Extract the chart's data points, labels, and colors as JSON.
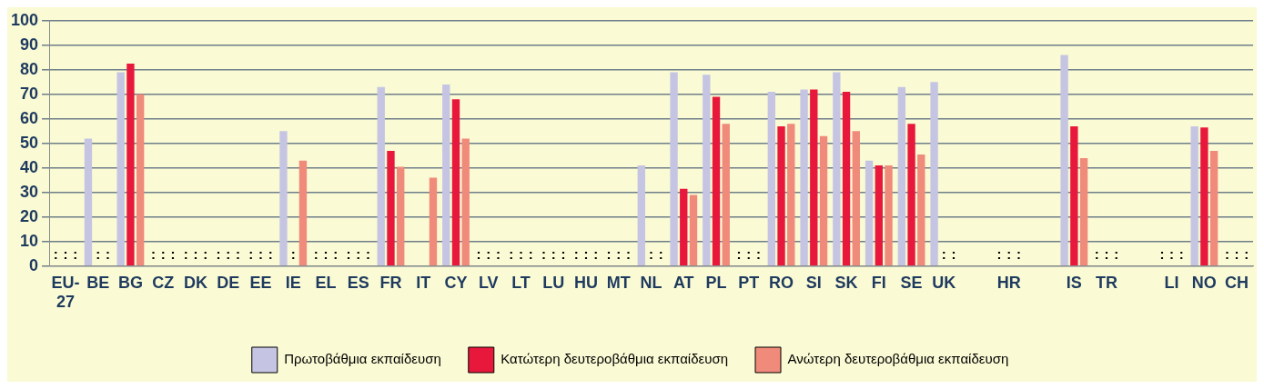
{
  "chart_data": {
    "type": "bar",
    "categories": [
      "EU-27",
      "BE",
      "BG",
      "CZ",
      "DK",
      "DE",
      "EE",
      "IE",
      "EL",
      "ES",
      "FR",
      "IT",
      "CY",
      "LV",
      "LT",
      "LU",
      "HU",
      "MT",
      "NL",
      "AT",
      "PL",
      "PT",
      "RO",
      "SI",
      "SK",
      "FI",
      "SE",
      "UK",
      null,
      "HR",
      null,
      "IS",
      "TR",
      null,
      "LI",
      "NO",
      "CH"
    ],
    "series": [
      {
        "name": "Πρωτοβάθμια εκπαίδευση",
        "color": "#c5c5e3",
        "values": [
          null,
          52,
          79,
          null,
          null,
          null,
          null,
          55,
          null,
          null,
          73,
          null,
          74,
          null,
          null,
          null,
          null,
          null,
          41,
          79,
          78,
          null,
          71,
          72,
          79,
          43,
          73,
          75,
          null,
          null,
          null,
          86,
          null,
          null,
          null,
          57,
          null
        ],
        "value_labels": [
          ":",
          null,
          null,
          ":",
          ":",
          ":",
          ":",
          null,
          ":",
          ":",
          null,
          null,
          null,
          ":",
          ":",
          ":",
          ":",
          ":",
          null,
          null,
          null,
          ":",
          null,
          null,
          null,
          null,
          null,
          null,
          null,
          ":",
          null,
          null,
          ":",
          null,
          ":",
          null,
          ":"
        ]
      },
      {
        "name": "Κατώτερη δευτεροβάθμια εκπαίδευση",
        "color": "#e8183c",
        "values": [
          null,
          null,
          82.5,
          null,
          null,
          null,
          null,
          null,
          null,
          null,
          47,
          null,
          68,
          null,
          null,
          null,
          null,
          null,
          null,
          31.5,
          69,
          null,
          57,
          72,
          71,
          41,
          58,
          null,
          null,
          null,
          null,
          57,
          null,
          null,
          null,
          56.5,
          null
        ],
        "value_labels": [
          ":",
          ":",
          null,
          ":",
          ":",
          ":",
          ":",
          ":",
          ":",
          ":",
          null,
          null,
          null,
          ":",
          ":",
          ":",
          ":",
          ":",
          ":",
          null,
          null,
          ":",
          null,
          null,
          null,
          null,
          null,
          ":",
          null,
          ":",
          null,
          null,
          ":",
          null,
          ":",
          null,
          ":"
        ]
      },
      {
        "name": "Ανώτερη δευτεροβάθμια εκπαίδευση",
        "color": "#f08a7a",
        "values": [
          null,
          null,
          70,
          null,
          null,
          null,
          null,
          43,
          null,
          null,
          40.5,
          36,
          52,
          null,
          null,
          null,
          null,
          null,
          null,
          29,
          58,
          null,
          58,
          53,
          55,
          41,
          45.5,
          null,
          null,
          null,
          null,
          44,
          null,
          null,
          null,
          47,
          null
        ],
        "value_labels": [
          ":",
          ":",
          null,
          ":",
          ":",
          ":",
          ":",
          null,
          ":",
          ":",
          null,
          null,
          null,
          ":",
          ":",
          ":",
          ":",
          ":",
          ":",
          null,
          null,
          ":",
          null,
          null,
          null,
          null,
          null,
          ":",
          null,
          ":",
          null,
          null,
          ":",
          null,
          ":",
          null,
          ":"
        ]
      }
    ],
    "ylim": [
      0,
      100
    ],
    "yticks": [
      0,
      10,
      20,
      30,
      40,
      50,
      60,
      70,
      80,
      90,
      100
    ],
    "grid": "y",
    "legend": "bottom"
  }
}
